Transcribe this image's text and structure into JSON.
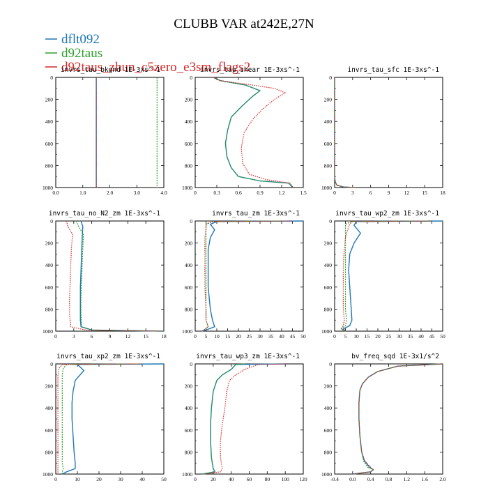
{
  "figure_title": "CLUBB VAR at242E,27N",
  "legend": [
    {
      "label": "dflt092",
      "color": "#1f77b4"
    },
    {
      "label": "d92taus",
      "color": "#2ca02c"
    },
    {
      "label": "d92taus_zhun_c5zero_e3sm_flags2",
      "color": "#d62728"
    }
  ],
  "chart_data": [
    {
      "type": "line",
      "title": "invrs_tau_bkgnd 1E-3xs^-1",
      "xlim": [
        0,
        4
      ],
      "xticks": [
        "0.0",
        "1.0",
        "2.0",
        "3.0",
        "4.0"
      ],
      "xtick_vals": [
        0,
        1,
        2,
        3,
        4
      ],
      "ylim": [
        0,
        1000
      ],
      "yticks": [
        "0",
        "200",
        "400",
        "600",
        "800",
        "1000"
      ],
      "series": [
        {
          "name": "dflt092",
          "x": [
            1.5,
            1.5
          ],
          "y": [
            0,
            1000
          ]
        },
        {
          "name": "d92taus",
          "x": [
            3.75,
            3.75
          ],
          "y": [
            0,
            1000
          ]
        },
        {
          "name": "d92taus_zhun_c5zero_e3sm_flags2",
          "x": [
            1.5,
            1.5
          ],
          "y": [
            0,
            1000
          ]
        }
      ]
    },
    {
      "type": "line",
      "title": "invrs_tau_shear 1E-3xs^-1",
      "xlim": [
        0,
        1.5
      ],
      "xticks": [
        "0",
        "0.3",
        "0.6",
        "0.9",
        "1.2",
        "1.5"
      ],
      "xtick_vals": [
        0,
        0.3,
        0.6,
        0.9,
        1.2,
        1.5
      ],
      "ylim": [
        0,
        1000
      ],
      "yticks": [
        "0",
        "200",
        "400",
        "600",
        "800",
        "1000"
      ],
      "series": [
        {
          "name": "dflt092",
          "x": [
            0.25,
            0.35,
            0.7,
            0.9,
            0.8,
            0.65,
            0.5,
            0.45,
            0.42,
            0.44,
            0.5,
            0.6,
            0.9,
            1.3,
            1.35
          ],
          "y": [
            0,
            30,
            70,
            120,
            170,
            260,
            360,
            480,
            600,
            720,
            820,
            900,
            940,
            960,
            1000
          ]
        },
        {
          "name": "d92taus",
          "x": [
            0.25,
            0.35,
            0.7,
            0.9,
            0.8,
            0.65,
            0.5,
            0.45,
            0.42,
            0.44,
            0.5,
            0.6,
            0.9,
            1.3,
            1.35
          ],
          "y": [
            0,
            30,
            70,
            120,
            170,
            260,
            360,
            480,
            600,
            720,
            820,
            900,
            940,
            960,
            1000
          ]
        },
        {
          "name": "d92taus_zhun_c5zero_e3sm_flags2",
          "x": [
            0.25,
            0.35,
            0.8,
            1.1,
            1.25,
            1.1,
            0.95,
            0.8,
            0.68,
            0.64,
            0.66,
            0.75,
            1.0,
            1.32,
            1.36
          ],
          "y": [
            0,
            30,
            70,
            100,
            140,
            200,
            280,
            380,
            500,
            640,
            780,
            880,
            930,
            960,
            1000
          ]
        }
      ]
    },
    {
      "type": "line",
      "title": "invrs_tau_sfc 1E-3xs^-1",
      "xlim": [
        0,
        18
      ],
      "xticks": [
        "0",
        "3",
        "6",
        "9",
        "12",
        "15",
        "18"
      ],
      "xtick_vals": [
        0,
        3,
        6,
        9,
        12,
        15,
        18
      ],
      "ylim": [
        0,
        1000
      ],
      "yticks": [
        "0",
        "200",
        "400",
        "600",
        "800",
        "1000"
      ],
      "series": [
        {
          "name": "dflt092",
          "x": [
            0,
            0,
            0.1,
            0.4,
            1.5,
            3.5
          ],
          "y": [
            0,
            900,
            950,
            980,
            995,
            1000
          ]
        },
        {
          "name": "d92taus",
          "x": [
            0,
            0,
            0.1,
            0.4,
            1.5,
            3.5
          ],
          "y": [
            0,
            900,
            950,
            980,
            995,
            1000
          ]
        },
        {
          "name": "d92taus_zhun_c5zero_e3sm_flags2",
          "x": [
            0,
            0,
            0.1,
            0.4,
            1.5,
            3.5
          ],
          "y": [
            0,
            900,
            950,
            980,
            995,
            1000
          ]
        }
      ]
    },
    {
      "type": "line",
      "title": "invrs_tau_no_N2_zm 1E-3xs^-1",
      "xlim": [
        0,
        18
      ],
      "xticks": [
        "0",
        "3",
        "6",
        "9",
        "12",
        "15",
        "18"
      ],
      "xtick_vals": [
        0,
        3,
        6,
        9,
        12,
        15,
        18
      ],
      "ylim": [
        0,
        1000
      ],
      "yticks": [
        "0",
        "200",
        "400",
        "600",
        "800",
        "1000"
      ],
      "series": [
        {
          "name": "dflt092",
          "x": [
            4.2,
            4.5,
            4.4,
            4.3,
            4.2,
            4.1,
            4.1,
            4.1,
            4.2,
            6,
            18
          ],
          "y": [
            0,
            50,
            150,
            300,
            450,
            600,
            750,
            900,
            960,
            990,
            1000
          ]
        },
        {
          "name": "d92taus",
          "x": [
            3.4,
            3.8,
            4.6,
            4.5,
            4.4,
            4.3,
            4.2,
            4.2,
            4.3,
            6,
            18
          ],
          "y": [
            0,
            50,
            120,
            250,
            400,
            550,
            700,
            850,
            960,
            990,
            1000
          ]
        },
        {
          "name": "d92taus_zhun_c5zero_e3sm_flags2",
          "x": [
            1.8,
            2.0,
            2.8,
            2.6,
            2.5,
            2.4,
            2.3,
            2.3,
            2.5,
            5,
            18
          ],
          "y": [
            0,
            50,
            120,
            250,
            400,
            550,
            700,
            850,
            960,
            990,
            1000
          ]
        }
      ]
    },
    {
      "type": "line",
      "title": "invrs_tau_zm 1E-3xs^-1",
      "xlim": [
        0,
        50
      ],
      "xticks": [
        "0",
        "5",
        "10",
        "15",
        "20",
        "25",
        "30",
        "35",
        "40",
        "45",
        "50"
      ],
      "xtick_vals": [
        0,
        5,
        10,
        15,
        20,
        25,
        30,
        35,
        40,
        45,
        50
      ],
      "ylim": [
        0,
        1000
      ],
      "yticks": [
        "0",
        "200",
        "400",
        "600",
        "800",
        "1000"
      ],
      "series": [
        {
          "name": "dflt092",
          "x": [
            50,
            10,
            7,
            9,
            7,
            6,
            6,
            6,
            7,
            8,
            9,
            5,
            3
          ],
          "y": [
            0,
            5,
            30,
            80,
            150,
            260,
            400,
            600,
            800,
            900,
            960,
            990,
            1000
          ]
        },
        {
          "name": "d92taus",
          "x": [
            40,
            8,
            5,
            5,
            5,
            5,
            5,
            5,
            5,
            5,
            6,
            4,
            3
          ],
          "y": [
            0,
            5,
            30,
            80,
            150,
            260,
            400,
            600,
            800,
            900,
            960,
            990,
            1000
          ]
        },
        {
          "name": "d92taus_zhun_c5zero_e3sm_flags2",
          "x": [
            45,
            8,
            5,
            5,
            4.5,
            4.5,
            4.5,
            4.5,
            5,
            5,
            6,
            4,
            3
          ],
          "y": [
            0,
            5,
            30,
            80,
            150,
            260,
            400,
            600,
            800,
            900,
            960,
            990,
            1000
          ]
        }
      ]
    },
    {
      "type": "line",
      "title": "invrs_tau_wp2_zm 1E-3xs^-1",
      "xlim": [
        0,
        50
      ],
      "xticks": [
        "0",
        "5",
        "10",
        "15",
        "20",
        "25",
        "30",
        "35",
        "40",
        "45",
        "50"
      ],
      "xtick_vals": [
        0,
        5,
        10,
        15,
        20,
        25,
        30,
        35,
        40,
        45,
        50
      ],
      "ylim": [
        0,
        1000
      ],
      "yticks": [
        "0",
        "200",
        "400",
        "600",
        "800",
        "1000"
      ],
      "series": [
        {
          "name": "dflt092",
          "x": [
            50,
            10,
            9,
            12,
            9,
            7,
            6.5,
            7,
            7.5,
            8,
            7,
            4,
            5
          ],
          "y": [
            0,
            5,
            40,
            110,
            200,
            300,
            450,
            600,
            750,
            900,
            950,
            980,
            1000
          ]
        },
        {
          "name": "d92taus",
          "x": [
            45,
            8,
            5,
            5,
            5,
            5,
            5,
            5,
            5,
            5.5,
            5,
            3,
            5
          ],
          "y": [
            0,
            5,
            30,
            80,
            150,
            260,
            400,
            600,
            800,
            900,
            950,
            980,
            1000
          ]
        },
        {
          "name": "d92taus_zhun_c5zero_e3sm_flags2",
          "x": [
            45,
            8,
            7,
            6,
            5,
            4.5,
            4,
            4,
            4,
            4.5,
            4,
            3,
            5
          ],
          "y": [
            0,
            5,
            30,
            80,
            150,
            260,
            400,
            600,
            800,
            900,
            950,
            980,
            1000
          ]
        }
      ]
    },
    {
      "type": "line",
      "title": "invrs_tau_xp2_zm 1E-3xs^-1",
      "xlim": [
        0,
        50
      ],
      "xticks": [
        "0",
        "10",
        "20",
        "30",
        "40",
        "50"
      ],
      "xtick_vals": [
        0,
        10,
        20,
        30,
        40,
        50
      ],
      "ylim": [
        0,
        1000
      ],
      "yticks": [
        "0",
        "200",
        "400",
        "600",
        "800",
        "1000"
      ],
      "series": [
        {
          "name": "dflt092",
          "x": [
            50,
            10,
            13,
            9,
            8,
            7.5,
            7.5,
            8,
            8.5,
            9,
            9,
            5,
            3
          ],
          "y": [
            0,
            5,
            60,
            150,
            250,
            350,
            500,
            650,
            800,
            900,
            950,
            980,
            1000
          ]
        },
        {
          "name": "d92taus",
          "x": [
            40,
            5,
            3.5,
            3,
            3,
            3,
            3,
            3,
            3,
            3,
            3.5,
            3,
            3
          ],
          "y": [
            0,
            5,
            40,
            100,
            200,
            300,
            450,
            600,
            750,
            900,
            950,
            980,
            1000
          ]
        },
        {
          "name": "d92taus_zhun_c5zero_e3sm_flags2",
          "x": [
            40,
            3,
            1.5,
            1,
            1,
            1,
            1,
            1,
            1,
            1,
            1,
            1,
            1
          ],
          "y": [
            0,
            5,
            40,
            100,
            200,
            300,
            450,
            600,
            750,
            900,
            950,
            980,
            1000
          ]
        }
      ]
    },
    {
      "type": "line",
      "title": "invrs_tau_wp3_zm 1E-3xs^-1",
      "xlim": [
        0,
        120
      ],
      "xticks": [
        "0",
        "20",
        "40",
        "60",
        "80",
        "100",
        "120"
      ],
      "xtick_vals": [
        0,
        20,
        40,
        60,
        80,
        100,
        120
      ],
      "ylim": [
        0,
        1000
      ],
      "yticks": [
        "0",
        "200",
        "400",
        "600",
        "800",
        "1000"
      ],
      "series": [
        {
          "name": "dflt092",
          "x": [
            100,
            45,
            40,
            30,
            24,
            20,
            18,
            17,
            17,
            18,
            20,
            22,
            8
          ],
          "y": [
            0,
            5,
            50,
            100,
            150,
            250,
            400,
            550,
            700,
            850,
            950,
            980,
            1000
          ]
        },
        {
          "name": "d92taus",
          "x": [
            55,
            45,
            40,
            30,
            24,
            20,
            18,
            17,
            17,
            18,
            20,
            22,
            8
          ],
          "y": [
            0,
            5,
            50,
            100,
            150,
            250,
            400,
            550,
            700,
            850,
            950,
            980,
            1000
          ]
        },
        {
          "name": "d92taus_zhun_c5zero_e3sm_flags2",
          "x": [
            100,
            70,
            55,
            45,
            38,
            35,
            33,
            30,
            28,
            28,
            30,
            28,
            10
          ],
          "y": [
            0,
            5,
            50,
            100,
            150,
            250,
            400,
            550,
            700,
            850,
            950,
            980,
            1000
          ]
        }
      ]
    },
    {
      "type": "line",
      "title": "bv_freq_sqd 1E-3x1/s^2",
      "xlim": [
        -0.4,
        2.0
      ],
      "xticks": [
        "-0.4",
        "0.0",
        "0.4",
        "0.8",
        "1.2",
        "1.6",
        "2.0"
      ],
      "xtick_vals": [
        -0.4,
        0,
        0.4,
        0.8,
        1.2,
        1.6,
        2.0
      ],
      "ylim": [
        0,
        1000
      ],
      "yticks": [
        "0",
        "200",
        "400",
        "600",
        "800",
        "1000"
      ],
      "series": [
        {
          "name": "dflt092",
          "x": [
            2.0,
            1.0,
            0.55,
            0.35,
            0.22,
            0.16,
            0.14,
            0.14,
            0.16,
            0.2,
            0.26,
            0.38,
            0.46,
            0.4,
            0.0
          ],
          "y": [
            0,
            20,
            70,
            120,
            180,
            240,
            350,
            500,
            650,
            800,
            880,
            940,
            960,
            980,
            1000
          ]
        },
        {
          "name": "d92taus",
          "x": [
            2.0,
            1.0,
            0.55,
            0.35,
            0.22,
            0.16,
            0.14,
            0.14,
            0.16,
            0.2,
            0.24,
            0.34,
            0.46,
            0.4,
            0.0
          ],
          "y": [
            0,
            20,
            70,
            120,
            180,
            240,
            350,
            500,
            650,
            800,
            880,
            940,
            960,
            980,
            1000
          ]
        },
        {
          "name": "d92taus_zhun_c5zero_e3sm_flags2",
          "x": [
            2.0,
            1.0,
            0.55,
            0.35,
            0.22,
            0.16,
            0.14,
            0.14,
            0.16,
            0.2,
            0.27,
            0.4,
            0.46,
            0.4,
            0.0
          ],
          "y": [
            0,
            20,
            70,
            120,
            180,
            240,
            350,
            500,
            650,
            800,
            880,
            940,
            960,
            980,
            1000
          ]
        }
      ]
    }
  ]
}
